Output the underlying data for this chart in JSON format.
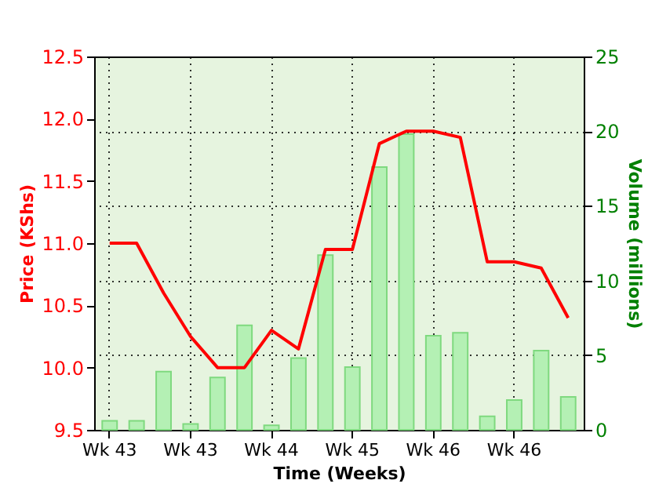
{
  "chart_data": {
    "type": "line",
    "xlabel": "Time (Weeks)",
    "ylabel": "Price (KShs)",
    "y2label": "Volume (millions)",
    "categories": [
      "Wk 43",
      null,
      null,
      "Wk 43",
      null,
      null,
      "Wk 44",
      null,
      null,
      "Wk 45",
      null,
      null,
      "Wk 46",
      null,
      null,
      "Wk 46",
      null,
      null
    ],
    "series": [
      {
        "type": "bar",
        "axis": "y2",
        "color": "#b4f0b4",
        "values": [
          0.6,
          0.6,
          3.9,
          0.4,
          3.5,
          7.0,
          0.3,
          4.8,
          11.7,
          4.2,
          17.6,
          19.8,
          6.3,
          6.5,
          0.9,
          2.0,
          5.3,
          2.2
        ]
      },
      {
        "type": "line",
        "color": "#ff0000",
        "values": [
          11.0,
          11.0,
          10.6,
          10.25,
          10.0,
          10.0,
          10.3,
          10.15,
          10.95,
          10.95,
          11.8,
          11.9,
          11.9,
          11.85,
          10.85,
          10.85,
          10.8,
          10.4
        ]
      }
    ],
    "ylim": [
      9.5,
      12.5
    ],
    "yticks": [
      9.5,
      {
        "value": 10,
        "label": "10.0"
      },
      10.5,
      {
        "value": 11,
        "label": "11.0"
      },
      11.5,
      {
        "value": 12,
        "label": "12.0"
      },
      12.5
    ],
    "y2lim": [
      0,
      25
    ],
    "y2ticks": [
      0,
      5,
      10,
      15,
      20,
      25
    ],
    "grid": true
  }
}
